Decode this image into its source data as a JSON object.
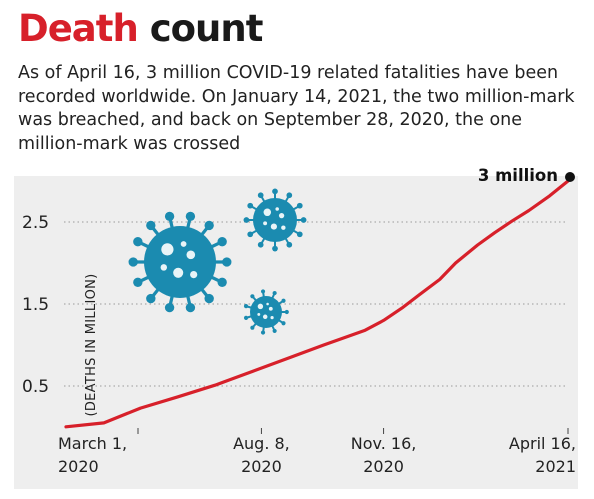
{
  "header": {
    "title_highlight": "Death",
    "title_rest": "count",
    "subtitle": "As of April 16, 3 million COVID-19 related fatalities have been recorded worldwide. On January 14, 2021, the two million-mark was breached, and back on September 28, 2020, the one million-mark was crossed"
  },
  "colors": {
    "accent": "#d7202a",
    "panel_bg": "#eeeeee",
    "virus": "#1b8bb0",
    "grid": "#9a9a9a"
  },
  "icons": [
    "virus-icon",
    "virus-icon",
    "virus-icon"
  ],
  "chart_data": {
    "type": "line",
    "title": "",
    "xlabel": "",
    "ylabel": "(DEATHS IN MILLION)",
    "ylim": [
      0,
      3
    ],
    "yticks": [
      0.5,
      1.5,
      2.5
    ],
    "ytick_labels": [
      "0.5",
      "1.5",
      "2.5"
    ],
    "xticks": [
      {
        "date": "2020-03-01",
        "line1": "March 1,",
        "line2": "2020"
      },
      {
        "date": "2020-08-08",
        "line1": "Aug. 8,",
        "line2": "2020"
      },
      {
        "date": "2020-11-16",
        "line1": "Nov. 16,",
        "line2": "2020"
      },
      {
        "date": "2021-04-16",
        "line1": "April 16,",
        "line2": "2021"
      }
    ],
    "grid": true,
    "series": [
      {
        "x": [
          "2020-03-01",
          "2020-04-01",
          "2020-05-01",
          "2020-06-01",
          "2020-07-01",
          "2020-08-01",
          "2020-09-01",
          "2020-09-28",
          "2020-10-15",
          "2020-11-01",
          "2020-11-16",
          "2020-12-01",
          "2020-12-15",
          "2021-01-01",
          "2021-01-14",
          "2021-02-01",
          "2021-02-15",
          "2021-03-01",
          "2021-03-15",
          "2021-04-01",
          "2021-04-16"
        ],
        "y": [
          0.003,
          0.05,
          0.23,
          0.37,
          0.51,
          0.68,
          0.85,
          1.0,
          1.09,
          1.18,
          1.3,
          1.45,
          1.61,
          1.8,
          2.0,
          2.22,
          2.37,
          2.51,
          2.64,
          2.82,
          3.0
        ]
      }
    ],
    "annotation": {
      "label": "3 million",
      "x": "2021-04-16",
      "y": 3.0
    }
  }
}
